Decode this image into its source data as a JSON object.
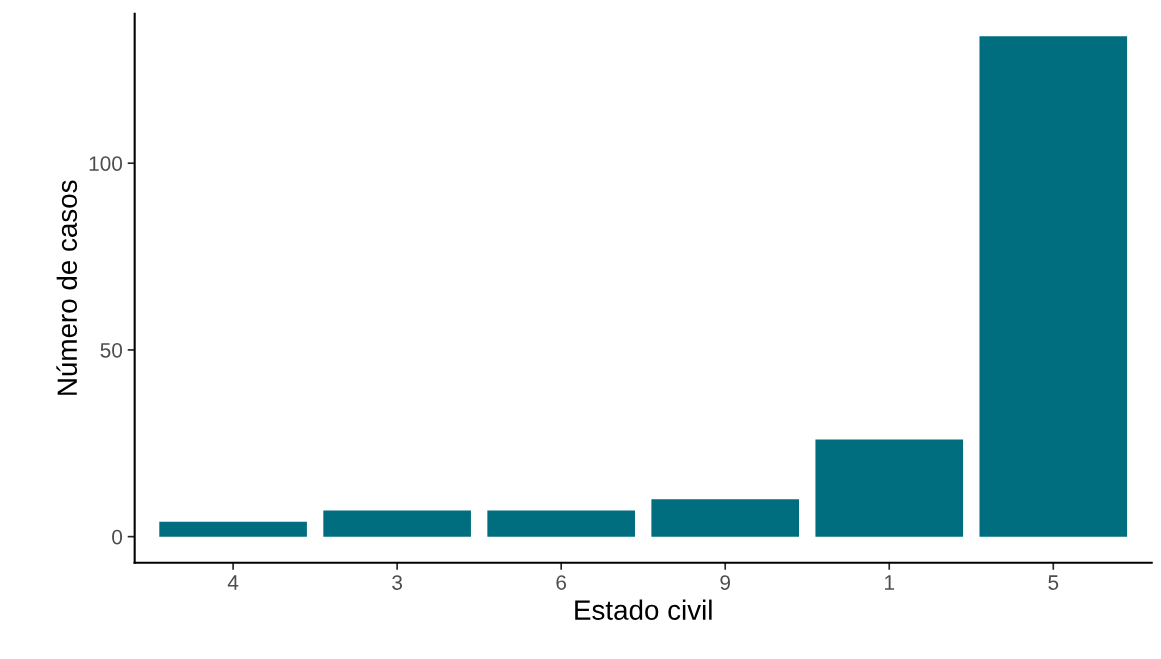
{
  "chart_data": {
    "type": "bar",
    "xlabel": "Estado civil",
    "ylabel": "Número de casos",
    "categories": [
      "4",
      "3",
      "6",
      "9",
      "1",
      "5"
    ],
    "values": [
      4,
      7,
      7,
      10,
      26,
      134
    ],
    "color": "#006e7f",
    "ylim": [
      -7,
      140
    ],
    "yticks": [
      0,
      50,
      100
    ],
    "grid": false,
    "legend": false
  }
}
